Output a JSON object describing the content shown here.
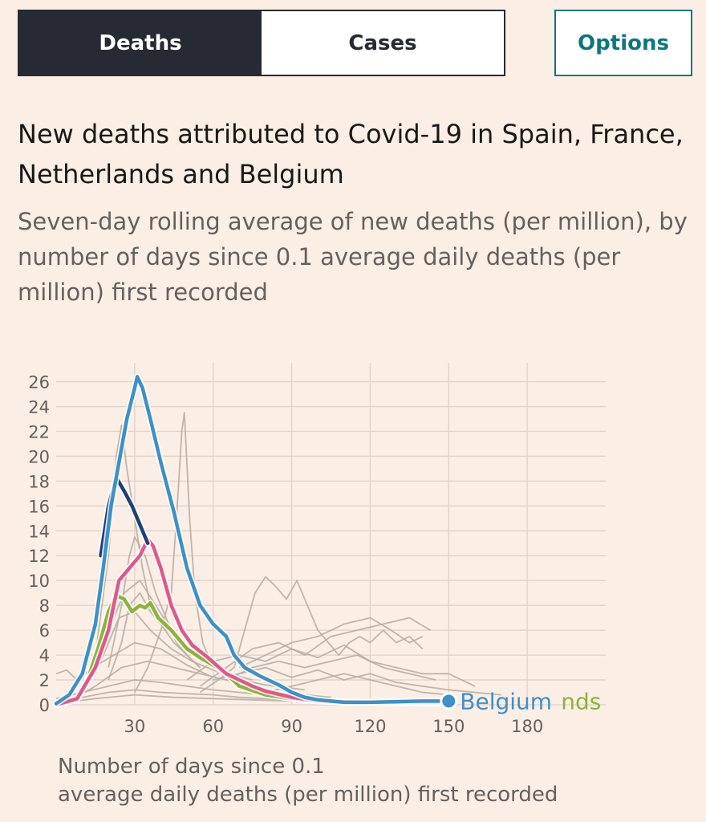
{
  "tabs": {
    "deaths_label": "Deaths",
    "cases_label": "Cases",
    "active": "Deaths"
  },
  "options_label": "Options",
  "title": "New deaths attributed to Covid-19 in Spain, France, Netherlands and Belgium",
  "subtitle": "Seven-day rolling average of new deaths (per million), by number of days since 0.1 average daily deaths (per million) first recorded",
  "xaxis_title": {
    "line1": "Number of days since 0.1",
    "line2": "average daily deaths (per million) first recorded"
  },
  "colors": {
    "background": "#fbeee4",
    "grid": "#e0d6cd",
    "other_countries": "#b8aea5",
    "belgium": "#3d90c8",
    "spain": "#1f3f7a",
    "france": "#e0588a",
    "netherlands": "#8ab43c"
  },
  "chart_data": {
    "type": "line",
    "title": "New deaths attributed to Covid-19 in Spain, France, Netherlands and Belgium",
    "subtitle": "Seven-day rolling average of new deaths (per million), by number of days since 0.1 average daily deaths (per million) first recorded",
    "xlabel": "Number of days since 0.1 average daily deaths (per million) first recorded",
    "ylabel": "",
    "xlim": [
      0,
      210
    ],
    "ylim": [
      0,
      27
    ],
    "x_ticks": [
      30,
      60,
      90,
      120,
      150,
      180
    ],
    "x_tick_labels": [
      "30",
      "60",
      "90",
      "120",
      "150",
      "180"
    ],
    "y_ticks": [
      0,
      2,
      4,
      6,
      8,
      10,
      12,
      14,
      16,
      18,
      20,
      22,
      24,
      26
    ],
    "y_tick_labels": [
      "0",
      "2",
      "4",
      "6",
      "8",
      "10",
      "12",
      "14",
      "16",
      "18",
      "20",
      "22",
      "24",
      "26"
    ],
    "grid": true,
    "end_labels": [
      {
        "text": "Belgium",
        "series": "Belgium"
      },
      {
        "text": "nds",
        "series": "Netherlands"
      }
    ],
    "highlighted_series": [
      {
        "name": "Belgium",
        "color": "#3d90c8",
        "points": [
          [
            0,
            0.1
          ],
          [
            5,
            0.8
          ],
          [
            10,
            2.5
          ],
          [
            15,
            6.5
          ],
          [
            18,
            11
          ],
          [
            21,
            16
          ],
          [
            24,
            19.5
          ],
          [
            27,
            23
          ],
          [
            30,
            25.5
          ],
          [
            31,
            26.4
          ],
          [
            33,
            25.5
          ],
          [
            36,
            23
          ],
          [
            40,
            19.5
          ],
          [
            45,
            15.5
          ],
          [
            50,
            11
          ],
          [
            55,
            8
          ],
          [
            60,
            6.5
          ],
          [
            65,
            5.5
          ],
          [
            68,
            4
          ],
          [
            72,
            3
          ],
          [
            78,
            2.3
          ],
          [
            85,
            1.6
          ],
          [
            90,
            1
          ],
          [
            95,
            0.6
          ],
          [
            100,
            0.4
          ],
          [
            110,
            0.2
          ],
          [
            120,
            0.2
          ],
          [
            130,
            0.25
          ],
          [
            140,
            0.3
          ],
          [
            150,
            0.3
          ]
        ]
      },
      {
        "name": "Spain",
        "color": "#1f3f7a",
        "points": [
          [
            17,
            12
          ],
          [
            20,
            16
          ],
          [
            23,
            18.3
          ],
          [
            26,
            17.2
          ],
          [
            29,
            16
          ],
          [
            32,
            14.5
          ],
          [
            35,
            13
          ]
        ]
      },
      {
        "name": "France",
        "color": "#e0588a",
        "points": [
          [
            0,
            0
          ],
          [
            8,
            0.5
          ],
          [
            15,
            3
          ],
          [
            20,
            6
          ],
          [
            24,
            10
          ],
          [
            28,
            11
          ],
          [
            32,
            12
          ],
          [
            35,
            13.3
          ],
          [
            37,
            12.8
          ],
          [
            40,
            11
          ],
          [
            44,
            8
          ],
          [
            48,
            6
          ],
          [
            52,
            4.8
          ],
          [
            58,
            3.8
          ],
          [
            65,
            2.5
          ],
          [
            70,
            2
          ],
          [
            75,
            1.5
          ],
          [
            80,
            1.1
          ],
          [
            90,
            0.6
          ],
          [
            100,
            0.3
          ],
          [
            110,
            0.25
          ],
          [
            120,
            0.2
          ],
          [
            130,
            0.2
          ],
          [
            140,
            0.2
          ],
          [
            148,
            0.2
          ]
        ]
      },
      {
        "name": "Netherlands",
        "color": "#8ab43c",
        "points": [
          [
            0,
            0
          ],
          [
            8,
            0.4
          ],
          [
            12,
            2
          ],
          [
            16,
            4.5
          ],
          [
            20,
            7.5
          ],
          [
            23,
            8.8
          ],
          [
            26,
            8.5
          ],
          [
            29,
            7.5
          ],
          [
            32,
            8
          ],
          [
            34,
            7.8
          ],
          [
            36,
            8.2
          ],
          [
            39,
            7
          ],
          [
            44,
            6
          ],
          [
            50,
            4.5
          ],
          [
            55,
            3.8
          ],
          [
            60,
            3.2
          ],
          [
            65,
            2.5
          ],
          [
            70,
            1.5
          ],
          [
            80,
            0.8
          ],
          [
            90,
            0.5
          ],
          [
            100,
            0.3
          ],
          [
            110,
            0.2
          ],
          [
            120,
            0.2
          ],
          [
            130,
            0.15
          ],
          [
            140,
            0.15
          ],
          [
            150,
            0.15
          ]
        ]
      }
    ],
    "background_series": [
      {
        "points": [
          [
            15,
            4
          ],
          [
            20,
            12
          ],
          [
            23,
            20
          ],
          [
            25,
            22.5
          ],
          [
            27,
            19
          ],
          [
            30,
            15
          ],
          [
            33,
            11
          ],
          [
            36,
            8
          ],
          [
            40,
            6.5
          ],
          [
            45,
            5
          ],
          [
            50,
            4
          ],
          [
            55,
            3
          ]
        ]
      },
      {
        "points": [
          [
            20,
            3
          ],
          [
            25,
            8
          ],
          [
            28,
            12
          ],
          [
            30,
            13.5
          ],
          [
            34,
            12
          ],
          [
            38,
            9
          ],
          [
            42,
            7
          ],
          [
            46,
            5
          ],
          [
            50,
            4
          ],
          [
            55,
            3
          ]
        ]
      },
      {
        "points": [
          [
            30,
            1
          ],
          [
            35,
            3
          ],
          [
            40,
            6
          ],
          [
            44,
            9
          ],
          [
            46,
            15
          ],
          [
            48,
            22
          ],
          [
            49,
            23.5
          ],
          [
            51,
            15
          ],
          [
            53,
            9
          ],
          [
            56,
            5
          ],
          [
            60,
            3
          ]
        ]
      },
      {
        "points": [
          [
            20,
            2
          ],
          [
            25,
            5
          ],
          [
            28,
            8
          ],
          [
            32,
            9
          ],
          [
            36,
            7.5
          ],
          [
            40,
            6.5
          ],
          [
            45,
            5.5
          ],
          [
            50,
            4.5
          ],
          [
            58,
            3.5
          ],
          [
            66,
            2.5
          ],
          [
            75,
            2
          ]
        ]
      },
      {
        "points": [
          [
            55,
            1
          ],
          [
            62,
            2
          ],
          [
            68,
            3
          ],
          [
            72,
            6
          ],
          [
            76,
            9
          ],
          [
            80,
            10.3
          ],
          [
            84,
            9.5
          ],
          [
            88,
            8.5
          ],
          [
            92,
            10
          ],
          [
            96,
            8
          ],
          [
            100,
            6
          ],
          [
            104,
            5
          ],
          [
            108,
            4
          ],
          [
            112,
            5
          ],
          [
            116,
            5.5
          ],
          [
            120,
            5
          ],
          [
            125,
            6
          ],
          [
            130,
            5
          ],
          [
            135,
            5.5
          ],
          [
            140,
            4.5
          ]
        ]
      },
      {
        "points": [
          [
            55,
            1.5
          ],
          [
            65,
            3
          ],
          [
            75,
            4.5
          ],
          [
            85,
            5
          ],
          [
            95,
            4
          ],
          [
            105,
            5.5
          ],
          [
            115,
            6
          ],
          [
            125,
            6.5
          ],
          [
            135,
            7
          ],
          [
            143,
            6
          ]
        ]
      },
      {
        "points": [
          [
            50,
            2
          ],
          [
            60,
            3.5
          ],
          [
            70,
            4
          ],
          [
            80,
            3.5
          ],
          [
            90,
            4.5
          ],
          [
            100,
            3.8
          ],
          [
            110,
            4.8
          ],
          [
            120,
            3.5
          ],
          [
            130,
            3
          ],
          [
            140,
            2.5
          ],
          [
            150,
            2.5
          ],
          [
            160,
            1.5
          ]
        ]
      },
      {
        "points": [
          [
            60,
            2
          ],
          [
            70,
            2.5
          ],
          [
            80,
            3
          ],
          [
            90,
            2.2
          ],
          [
            100,
            2.8
          ],
          [
            110,
            2
          ],
          [
            120,
            2.5
          ],
          [
            130,
            1.8
          ],
          [
            140,
            1.5
          ],
          [
            150,
            1.2
          ],
          [
            160,
            1
          ],
          [
            170,
            0.8
          ]
        ]
      },
      {
        "points": [
          [
            0,
            0.5
          ],
          [
            10,
            1
          ],
          [
            20,
            1.5
          ],
          [
            30,
            2
          ],
          [
            40,
            1.8
          ],
          [
            50,
            1.5
          ],
          [
            60,
            1.2
          ],
          [
            70,
            1
          ],
          [
            80,
            0.8
          ],
          [
            90,
            0.7
          ],
          [
            100,
            0.6
          ]
        ]
      },
      {
        "points": [
          [
            0,
            0.2
          ],
          [
            10,
            0.6
          ],
          [
            20,
            1
          ],
          [
            30,
            1.2
          ],
          [
            40,
            1
          ],
          [
            50,
            0.9
          ],
          [
            60,
            0.8
          ],
          [
            70,
            0.6
          ],
          [
            80,
            0.5
          ],
          [
            90,
            0.4
          ]
        ]
      },
      {
        "points": [
          [
            5,
            0.3
          ],
          [
            15,
            1.5
          ],
          [
            25,
            3
          ],
          [
            35,
            3.5
          ],
          [
            45,
            3
          ],
          [
            55,
            2.5
          ],
          [
            65,
            2
          ],
          [
            75,
            1.5
          ],
          [
            85,
            1
          ],
          [
            95,
            0.8
          ],
          [
            105,
            0.6
          ]
        ]
      },
      {
        "points": [
          [
            10,
            1
          ],
          [
            18,
            4
          ],
          [
            24,
            7
          ],
          [
            30,
            7.5
          ],
          [
            36,
            6
          ],
          [
            44,
            4.5
          ],
          [
            52,
            3.5
          ],
          [
            60,
            2.8
          ],
          [
            70,
            2
          ],
          [
            80,
            1.6
          ],
          [
            95,
            1.2
          ]
        ]
      },
      {
        "points": [
          [
            70,
            3
          ],
          [
            80,
            4
          ],
          [
            90,
            5
          ],
          [
            100,
            5.5
          ],
          [
            110,
            6.5
          ],
          [
            120,
            7
          ],
          [
            128,
            6
          ],
          [
            135,
            5
          ],
          [
            140,
            5.5
          ]
        ]
      },
      {
        "points": [
          [
            65,
            2
          ],
          [
            75,
            3
          ],
          [
            85,
            3.5
          ],
          [
            95,
            3
          ],
          [
            105,
            3.5
          ],
          [
            115,
            4
          ],
          [
            125,
            3
          ],
          [
            135,
            2.5
          ],
          [
            145,
            2
          ]
        ]
      },
      {
        "points": [
          [
            0,
            0.1
          ],
          [
            15,
            0.5
          ],
          [
            30,
            0.8
          ],
          [
            45,
            0.6
          ],
          [
            60,
            0.5
          ],
          [
            75,
            0.4
          ],
          [
            90,
            0.3
          ]
        ]
      },
      {
        "points": [
          [
            20,
            6
          ],
          [
            26,
            9
          ],
          [
            32,
            10
          ],
          [
            38,
            8
          ],
          [
            44,
            6
          ],
          [
            50,
            4.5
          ],
          [
            56,
            3.5
          ],
          [
            62,
            2.8
          ]
        ]
      },
      {
        "points": [
          [
            80,
            1
          ],
          [
            90,
            1.5
          ],
          [
            100,
            2
          ],
          [
            110,
            2.5
          ],
          [
            120,
            2
          ],
          [
            130,
            1.5
          ],
          [
            140,
            1
          ],
          [
            150,
            0.8
          ]
        ]
      },
      {
        "points": [
          [
            0,
            2.5
          ],
          [
            4,
            2.8
          ],
          [
            8,
            2
          ],
          [
            14,
            3
          ],
          [
            22,
            4
          ],
          [
            30,
            5
          ],
          [
            40,
            4.5
          ],
          [
            50,
            3.2
          ],
          [
            60,
            2.2
          ]
        ]
      }
    ]
  }
}
